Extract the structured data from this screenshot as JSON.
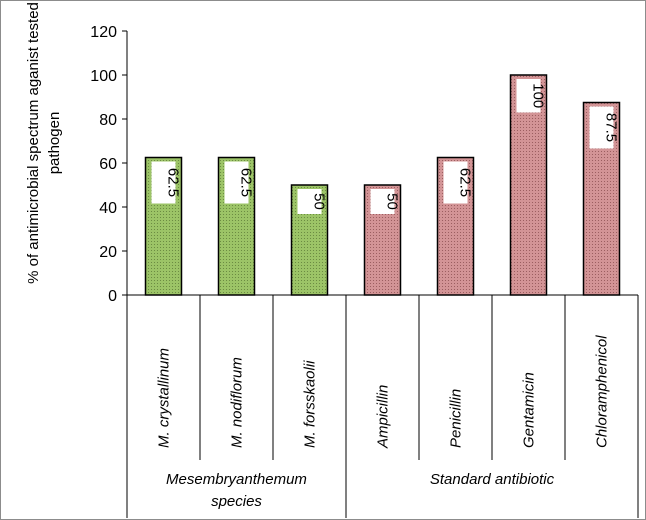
{
  "chart_data": {
    "type": "bar",
    "ylabel": [
      "% of antimicrobial spectrum aganist tested",
      "pathogen"
    ],
    "ylim": [
      0,
      120
    ],
    "yticks": [
      0,
      20,
      40,
      60,
      80,
      100,
      120
    ],
    "grid": false,
    "categories": [
      "M. crystallinum",
      "M. nodiflorum",
      "M. forsskaolii",
      "Ampicillin",
      "Penicillin",
      "Gentamicin",
      "Chloramphenicol"
    ],
    "values": [
      62.5,
      62.5,
      50,
      50,
      62.5,
      100,
      87.5
    ],
    "data_labels": [
      "62.5",
      "62.5",
      "50",
      "50",
      "62.5",
      "100",
      "87.5"
    ],
    "groups": [
      {
        "name": [
          "Mesembryanthemum",
          "species"
        ],
        "start": 0,
        "end": 2,
        "color": "#8db35a"
      },
      {
        "name": [
          "Standard antibiotic"
        ],
        "start": 3,
        "end": 6,
        "color": "#c98284"
      }
    ]
  }
}
